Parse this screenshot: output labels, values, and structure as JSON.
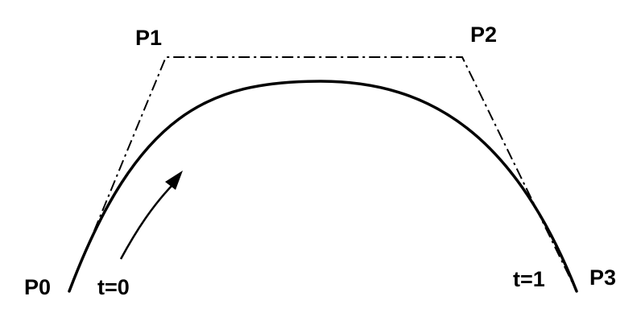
{
  "labels": {
    "p0": "P0",
    "p1": "P1",
    "p2": "P2",
    "p3": "P3",
    "t_start": "t=0",
    "t_end": "t=1"
  },
  "colors": {
    "stroke": "#000000",
    "background": "#ffffff"
  },
  "curve": {
    "type": "cubic-bezier",
    "control_polygon_style": "dash-dot"
  },
  "direction_arrow": {
    "icon": "arrow-icon",
    "meaning": "increasing t"
  }
}
